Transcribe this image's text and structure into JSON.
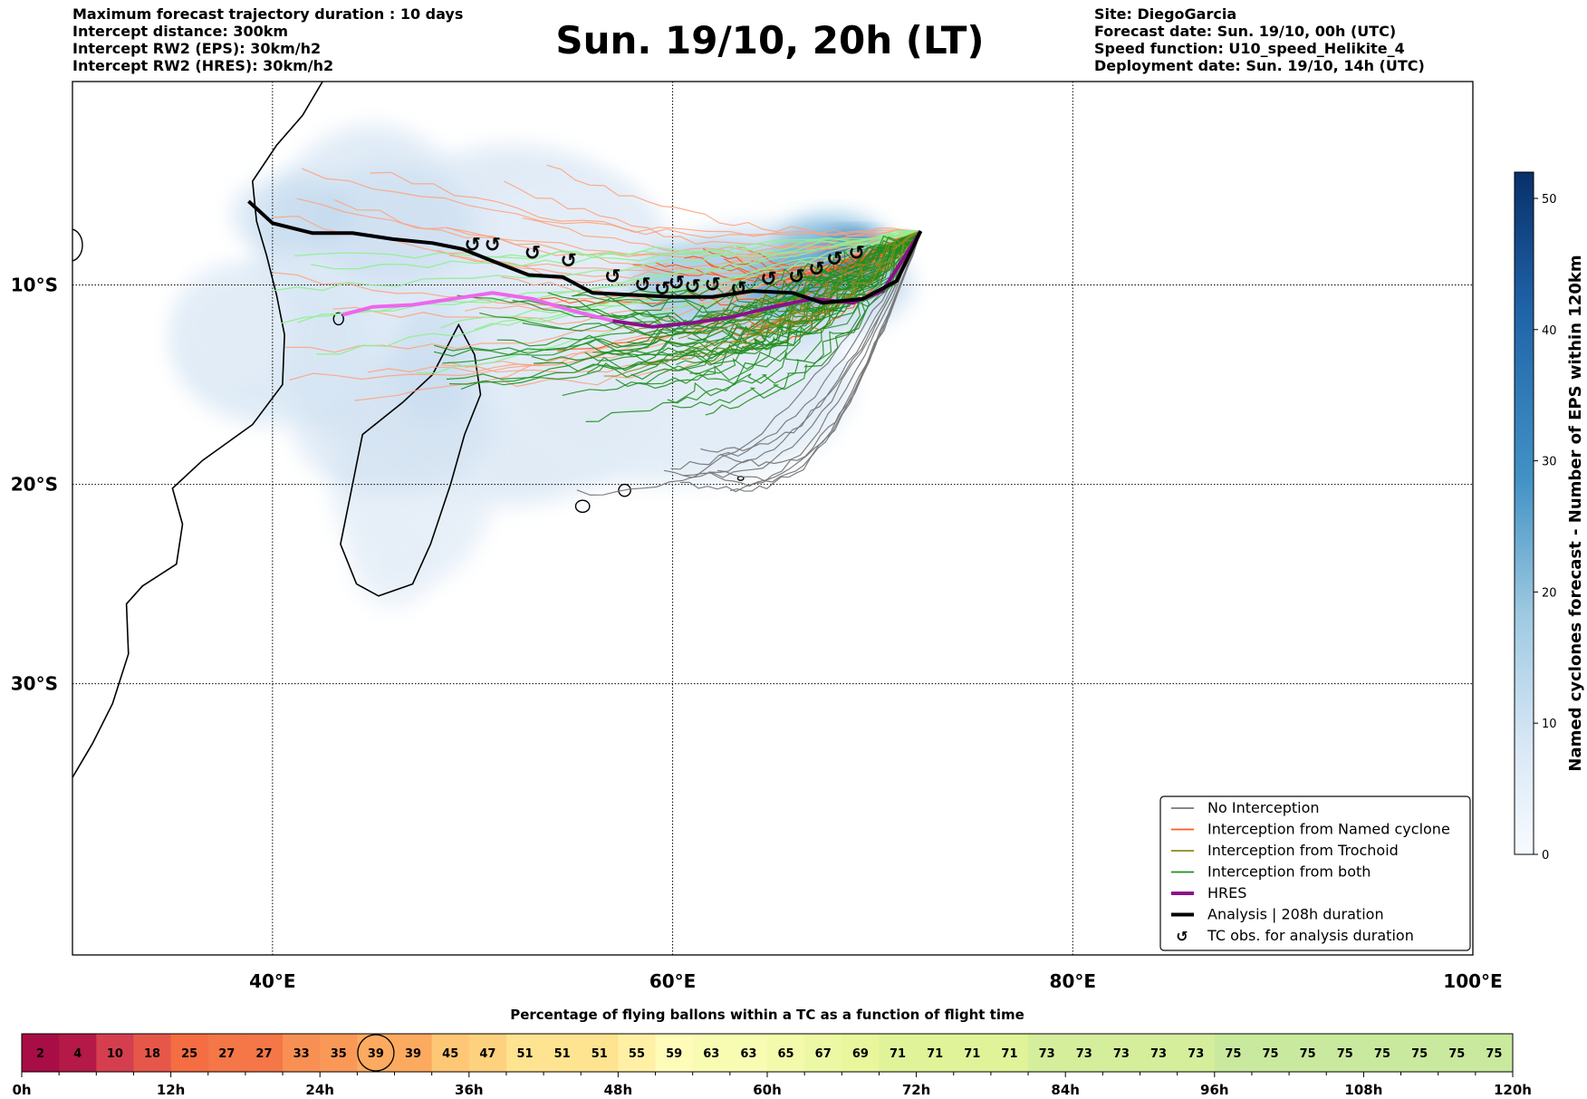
{
  "header": {
    "left_lines": [
      "Maximum forecast trajectory duration : 10 days",
      "Intercept distance: 300km",
      "Intercept RW2 (EPS):  30km/h2",
      "Intercept RW2 (HRES): 30km/h2"
    ],
    "title": "Sun. 19/10, 20h (LT)",
    "right_lines": [
      "Site: DiegoGarcia",
      "Forecast date: Sun. 19/10, 00h (UTC)",
      "Speed function: U10_speed_Helikite_4",
      "Deployment date: Sun. 19/10, 14h (UTC)"
    ]
  },
  "chart_data": [
    {
      "type": "map",
      "lon_range": [
        30,
        100
      ],
      "lat_range": [
        -43.6,
        0.2
      ],
      "x_ticks": [
        {
          "value": 40,
          "label": "40°E"
        },
        {
          "value": 60,
          "label": "60°E"
        },
        {
          "value": 80,
          "label": "80°E"
        },
        {
          "value": 100,
          "label": "100°E"
        }
      ],
      "y_ticks": [
        {
          "value": -10,
          "label": "10°S"
        },
        {
          "value": -20,
          "label": "20°S"
        },
        {
          "value": -30,
          "label": "30°S"
        }
      ],
      "colorbar": {
        "label": "Named cyclones forecast - Number of EPS within 120km",
        "range": [
          0,
          52
        ],
        "ticks": [
          0,
          10,
          20,
          30,
          40,
          50
        ],
        "colors": [
          "#f7fbff",
          "#08306b"
        ]
      },
      "legend": {
        "location": "lower-right",
        "entries": [
          {
            "label": "No Interception",
            "color": "#777777",
            "style": "thin"
          },
          {
            "label": "Interception from Named cyclone",
            "color": "#ff5a1f",
            "style": "thin"
          },
          {
            "label": "Interception from Trochoid",
            "color": "#8b8b1a",
            "style": "thin"
          },
          {
            "label": "Interception from both",
            "color": "#1f8f1f",
            "style": "thin"
          },
          {
            "label": "HRES",
            "color": "#8b108b",
            "style": "thick"
          },
          {
            "label": "Analysis | 208h duration",
            "color": "#000000",
            "style": "thick"
          },
          {
            "label": "TC obs. for analysis duration",
            "color": "#000000",
            "style": "symbol"
          }
        ]
      },
      "site": {
        "name": "DiegoGarcia",
        "lon": 72.4,
        "lat": -7.3
      },
      "analysis_track": [
        [
          38.8,
          -5.8
        ],
        [
          40,
          -6.9
        ],
        [
          42,
          -7.4
        ],
        [
          44,
          -7.4
        ],
        [
          46,
          -7.7
        ],
        [
          48,
          -7.9
        ],
        [
          49.5,
          -8.2
        ],
        [
          51,
          -8.8
        ],
        [
          52.8,
          -9.5
        ],
        [
          54.5,
          -9.6
        ],
        [
          56,
          -10.4
        ],
        [
          58,
          -10.5
        ],
        [
          60,
          -10.6
        ],
        [
          62,
          -10.6
        ],
        [
          64,
          -10.3
        ],
        [
          66,
          -10.4
        ],
        [
          67.5,
          -10.9
        ],
        [
          69.5,
          -10.7
        ],
        [
          71.2,
          -9.8
        ],
        [
          72.4,
          -7.3
        ]
      ],
      "hres_track": [
        [
          43.5,
          -11.5
        ],
        [
          45,
          -11.1
        ],
        [
          47,
          -11.0
        ],
        [
          49,
          -10.7
        ],
        [
          51,
          -10.4
        ],
        [
          53,
          -10.7
        ],
        [
          55,
          -11.3
        ],
        [
          57,
          -11.8
        ],
        [
          59,
          -12.1
        ],
        [
          61,
          -11.9
        ],
        [
          63,
          -11.6
        ],
        [
          65,
          -11.1
        ],
        [
          67,
          -10.7
        ],
        [
          69,
          -10.9
        ],
        [
          70.5,
          -10.3
        ],
        [
          72.4,
          -7.3
        ]
      ],
      "tc_obs": [
        [
          50,
          -8.0
        ],
        [
          51,
          -8.0
        ],
        [
          53,
          -8.4
        ],
        [
          54.8,
          -8.8
        ],
        [
          57,
          -9.6
        ],
        [
          58.5,
          -10.0
        ],
        [
          59.5,
          -10.2
        ],
        [
          60.2,
          -9.9
        ],
        [
          61,
          -10.1
        ],
        [
          62,
          -10.0
        ],
        [
          63.3,
          -10.2
        ],
        [
          64.8,
          -9.7
        ],
        [
          66.2,
          -9.6
        ],
        [
          67.2,
          -9.2
        ],
        [
          68.1,
          -8.7
        ],
        [
          69.2,
          -8.4
        ]
      ]
    },
    {
      "type": "table",
      "title": "Percentage of flying ballons within a TC as a function of flight time",
      "cells": [
        2,
        4,
        10,
        18,
        25,
        27,
        27,
        33,
        35,
        39,
        39,
        45,
        47,
        51,
        51,
        51,
        55,
        59,
        63,
        63,
        65,
        67,
        69,
        71,
        71,
        71,
        71,
        73,
        73,
        73,
        73,
        73,
        75,
        75,
        75,
        75,
        75,
        75,
        75,
        75
      ],
      "highlight_index": 9,
      "time_labels": [
        "0h",
        "12h",
        "24h",
        "36h",
        "48h",
        "60h",
        "72h",
        "84h",
        "96h",
        "108h",
        "120h"
      ]
    }
  ]
}
